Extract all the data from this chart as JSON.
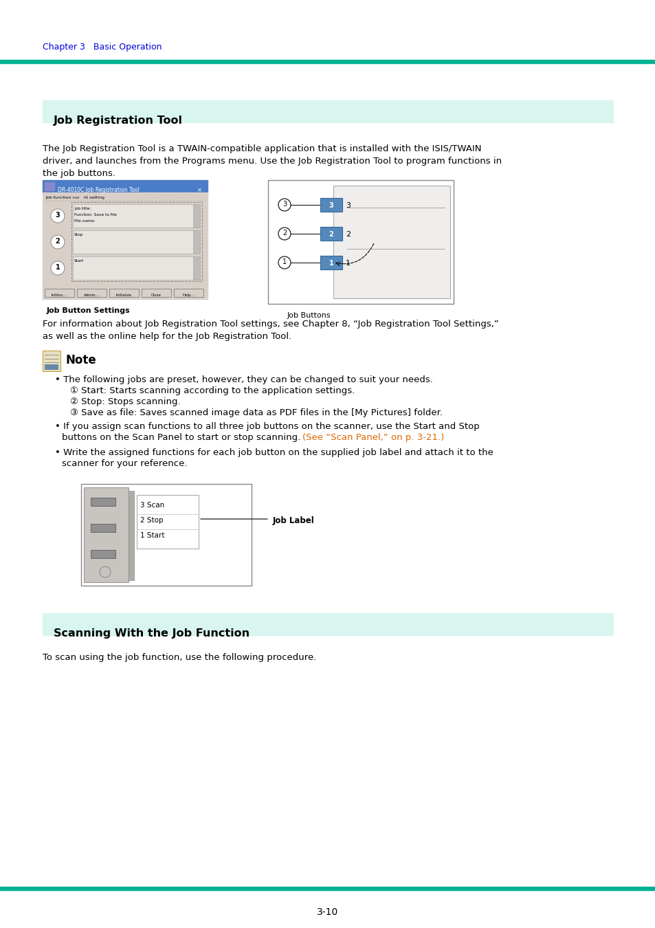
{
  "page_bg": "#ffffff",
  "teal_color": "#00b294",
  "teal_light_bg": "#d8f5f0",
  "chapter_text": "Chapter 3   Basic Operation",
  "chapter_color": "#0000dd",
  "section1_title": "Job Registration Tool",
  "section1_body_line1": "The Job Registration Tool is a TWAIN-compatible application that is installed with the ISIS/TWAIN",
  "section1_body_line2": "driver, and launches from the Programs menu. Use the Job Registration Tool to program functions in",
  "section1_body_line3": "the job buttons.",
  "label_job_button_settings": "Job Button Settings",
  "label_job_buttons": "Job Buttons",
  "info_line1": "For information about Job Registration Tool settings, see Chapter 8, “Job Registration Tool Settings,”",
  "info_line2": "as well as the online help for the Job Registration Tool.",
  "note_title": "Note",
  "bullet1": "The following jobs are preset, however, they can be changed to suit your needs.",
  "sub1": "① Start: Starts scanning according to the application settings.",
  "sub2": "② Stop: Stops scanning.",
  "sub3": "③ Save as file: Saves scanned image data as PDF files in the [My Pictures] folder.",
  "bullet2_line1": "If you assign scan functions to all three job buttons on the scanner, use the Start and Stop",
  "bullet2_line2": "buttons on the Scan Panel to start or stop scanning. ",
  "bullet2_link": "(See “Scan Panel,” on p. 3-21.)",
  "bullet3_line1": "Write the assigned functions for each job button on the supplied job label and attach it to the",
  "bullet3_line2": "scanner for your reference.",
  "label_job_label": "Job Label",
  "section2_title": "Scanning With the Job Function",
  "section2_body": "To scan using the job function, use the following procedure.",
  "page_number": "3-10",
  "link_color": "#dd6600",
  "black": "#000000",
  "body_font_size": 9.5,
  "title_font_size": 11.5,
  "chapter_font_size": 9.0,
  "note_font_size": 12.0,
  "caption_font_size": 8.0
}
